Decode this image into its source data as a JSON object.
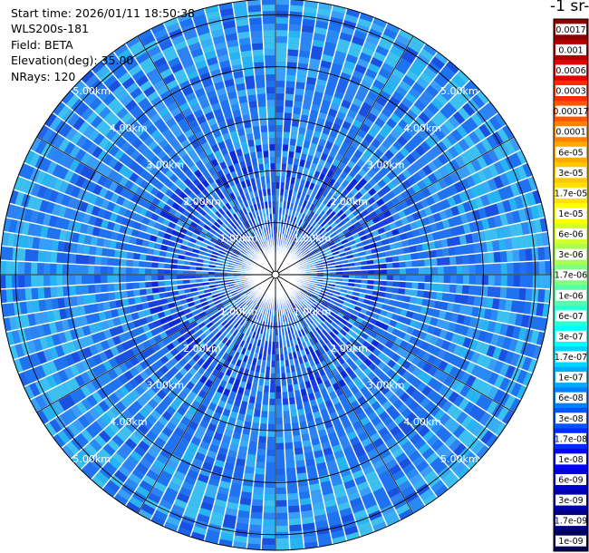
{
  "header": {
    "start_time": "Start time: 2026/01/11 18:50:38",
    "instrument": "WLS200s-181",
    "field": "Field: BETA",
    "elevation": "Elevation(deg): 35.00",
    "nrays": "NRays: 120"
  },
  "units_label": "-1 sr-",
  "chart_data": {
    "type": "heatmap",
    "projection": "polar (PPI)",
    "field": "BETA",
    "elevation_deg": 35.0,
    "n_rays": 120,
    "range_rings_km": [
      1.0,
      2.0,
      3.0,
      4.0,
      5.0
    ],
    "range_ring_labels": [
      "1.00km",
      "2.00km",
      "3.00km",
      "4.00km",
      "5.00km"
    ],
    "max_range_km": 5.3,
    "colorbar_ticks": [
      "0.0017",
      "0.001",
      "0.0006",
      "0.0003",
      "0.00017",
      "0.0001",
      "6e-05",
      "3e-05",
      "1.7e-05",
      "1e-05",
      "6e-06",
      "3e-06",
      "1.7e-06",
      "1e-06",
      "6e-07",
      "3e-07",
      "1.7e-07",
      "1e-07",
      "6e-08",
      "3e-08",
      "1.7e-08",
      "1e-08",
      "6e-09",
      "3e-09",
      "1.7e-09",
      "1e-09"
    ],
    "colorbar_colors": [
      "#8b0000",
      "#b00000",
      "#e00000",
      "#ff2a00",
      "#ff5500",
      "#ff7f00",
      "#ffaa00",
      "#ffc800",
      "#ffe100",
      "#ffff00",
      "#d4ff2a",
      "#aaff55",
      "#80ff80",
      "#55ffaa",
      "#2affd4",
      "#00ffff",
      "#00d4ff",
      "#00aaff",
      "#0080ff",
      "#0055ff",
      "#002aff",
      "#0000ff",
      "#0000d4",
      "#0000aa",
      "#000080",
      "#000055"
    ]
  }
}
